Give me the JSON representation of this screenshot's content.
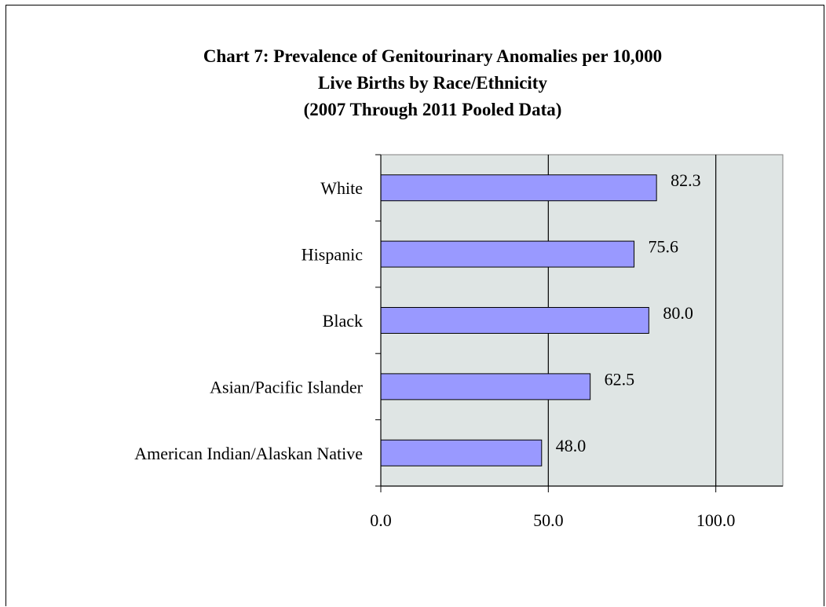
{
  "chart_data": {
    "type": "bar",
    "orientation": "horizontal",
    "title": [
      "Chart 7: Prevalence of Genitourinary Anomalies per 10,000",
      "Live Births by Race/Ethnicity",
      "(2007 Through  2011 Pooled Data)"
    ],
    "categories": [
      "White",
      "Hispanic",
      "Black",
      "Asian/Pacific Islander",
      "American Indian/Alaskan Native"
    ],
    "values": [
      82.3,
      75.6,
      80.0,
      62.5,
      48.0
    ],
    "value_labels": [
      "82.3",
      "75.6",
      "80.0",
      "62.5",
      "48.0"
    ],
    "xlim": [
      0,
      120
    ],
    "xticks": [
      0,
      50,
      100
    ],
    "xtick_labels": [
      "0.0",
      "50.0",
      "100.0"
    ],
    "xlabel": "",
    "ylabel": "",
    "grid": "vertical",
    "legend": "none",
    "colors": {
      "bar_fill": "#9999ff",
      "bar_stroke": "#000000",
      "plot_background": "#dfe5e4",
      "gridline": "#000000"
    }
  }
}
